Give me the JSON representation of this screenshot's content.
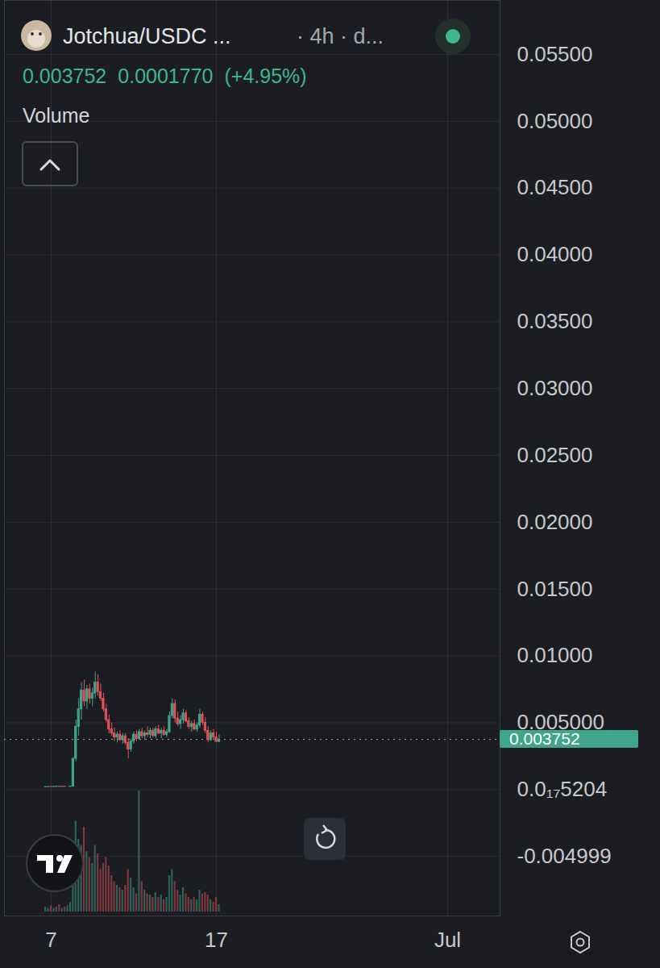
{
  "chart_data": {
    "type": "candlestick",
    "title": "Jotchua/USDC ...",
    "subtitle": "· 4h · d...",
    "last_price": 0.003752,
    "change": {
      "value": 0.000177,
      "label": "0.0001770"
    },
    "change_percent": {
      "value": 4.95,
      "label": "(+4.95%)"
    },
    "volume_title": "Volume",
    "x": [
      6.667,
      6.833,
      7,
      7.167,
      7.333,
      7.5,
      7.667,
      7.833,
      8,
      8.167,
      8.333,
      8.5,
      8.667,
      8.833,
      9,
      9.167,
      9.333,
      9.5,
      9.667,
      9.833,
      10,
      10.167,
      10.333,
      10.5,
      10.667,
      10.833,
      11,
      11.167,
      11.333,
      11.5,
      11.667,
      11.833,
      12,
      12.167,
      12.333,
      12.5,
      12.667,
      12.833,
      13,
      13.167,
      13.333,
      13.5,
      13.667,
      13.833,
      14,
      14.167,
      14.333,
      14.5,
      14.667,
      14.833,
      15,
      15.167,
      15.333,
      15.5,
      15.667,
      15.833,
      16,
      16.167,
      16.333,
      16.5,
      16.667,
      16.833,
      17,
      17.167
    ],
    "open": [
      0.00018,
      0.00019,
      0.0002,
      0.00019,
      0.0002,
      0.00021,
      0.0002,
      0.00021,
      0.0002,
      0.0002,
      0.00022,
      0.0023,
      0.0047,
      0.006,
      0.0074,
      0.0066,
      0.0075,
      0.0068,
      0.0072,
      0.008,
      0.0073,
      0.0068,
      0.006,
      0.0052,
      0.0045,
      0.0042,
      0.0039,
      0.0041,
      0.0037,
      0.004,
      0.0035,
      0.003,
      0.0036,
      0.0041,
      0.0038,
      0.0043,
      0.004,
      0.0042,
      0.0041,
      0.0044,
      0.004,
      0.0045,
      0.0042,
      0.0044,
      0.0041,
      0.0043,
      0.0055,
      0.0064,
      0.0053,
      0.0049,
      0.0052,
      0.0057,
      0.0051,
      0.0047,
      0.0049,
      0.0045,
      0.0048,
      0.0056,
      0.005,
      0.0044,
      0.0037,
      0.0042,
      0.0039,
      0.003575
    ],
    "high": [
      0.0002,
      0.00021,
      0.00021,
      0.0002,
      0.00022,
      0.00022,
      0.00021,
      0.00022,
      0.00021,
      0.00024,
      0.0024,
      0.0052,
      0.0068,
      0.008,
      0.0082,
      0.0078,
      0.0079,
      0.0076,
      0.0088,
      0.0086,
      0.0079,
      0.0072,
      0.0064,
      0.0056,
      0.005,
      0.0046,
      0.0043,
      0.0044,
      0.0042,
      0.0042,
      0.0038,
      0.0038,
      0.0043,
      0.0044,
      0.0045,
      0.0046,
      0.0044,
      0.0047,
      0.0046,
      0.0046,
      0.0047,
      0.0048,
      0.0046,
      0.0047,
      0.0045,
      0.0058,
      0.0068,
      0.0067,
      0.0058,
      0.0055,
      0.006,
      0.0059,
      0.0054,
      0.0051,
      0.0052,
      0.005,
      0.006,
      0.0058,
      0.0054,
      0.0047,
      0.0044,
      0.0045,
      0.0043,
      0.0041
    ],
    "low": [
      0.00017,
      0.00018,
      0.00019,
      0.00018,
      0.00019,
      0.0002,
      0.00019,
      0.0002,
      0.00019,
      0.00019,
      0.00021,
      0.0021,
      0.004,
      0.0052,
      0.0062,
      0.006,
      0.0064,
      0.0062,
      0.0068,
      0.007,
      0.0066,
      0.0058,
      0.005,
      0.0042,
      0.004,
      0.0036,
      0.0035,
      0.0036,
      0.0034,
      0.0033,
      0.0023,
      0.0028,
      0.0034,
      0.0036,
      0.0037,
      0.0038,
      0.0037,
      0.0039,
      0.0038,
      0.0039,
      0.0038,
      0.0041,
      0.0038,
      0.004,
      0.0039,
      0.0042,
      0.0053,
      0.005,
      0.0047,
      0.0045,
      0.0049,
      0.005,
      0.0045,
      0.0043,
      0.0044,
      0.0043,
      0.0046,
      0.0048,
      0.0042,
      0.0035,
      0.0036,
      0.0037,
      0.0035,
      0.0035
    ],
    "close": [
      0.00019,
      0.0002,
      0.00019,
      0.0002,
      0.00021,
      0.0002,
      0.00021,
      0.0002,
      0.0002,
      0.00022,
      0.0023,
      0.0047,
      0.006,
      0.0074,
      0.0066,
      0.0075,
      0.0068,
      0.0072,
      0.008,
      0.0073,
      0.0068,
      0.006,
      0.0052,
      0.0045,
      0.0042,
      0.0039,
      0.0041,
      0.0037,
      0.004,
      0.0035,
      0.003,
      0.0036,
      0.0041,
      0.0038,
      0.0043,
      0.004,
      0.0042,
      0.0041,
      0.0044,
      0.004,
      0.0045,
      0.0042,
      0.0044,
      0.0041,
      0.0043,
      0.0055,
      0.0064,
      0.0053,
      0.0049,
      0.0052,
      0.0057,
      0.0051,
      0.0047,
      0.0049,
      0.0045,
      0.0048,
      0.0056,
      0.005,
      0.0044,
      0.0037,
      0.0042,
      0.0039,
      0.003575,
      0.003752
    ],
    "volume": [
      4,
      3,
      5,
      3,
      4,
      6,
      3,
      4,
      5,
      8,
      30,
      75,
      60,
      55,
      70,
      50,
      45,
      40,
      55,
      48,
      35,
      40,
      45,
      38,
      30,
      25,
      22,
      20,
      18,
      22,
      35,
      28,
      20,
      15,
      100,
      25,
      18,
      15,
      14,
      12,
      16,
      12,
      14,
      10,
      12,
      30,
      35,
      25,
      18,
      14,
      20,
      15,
      12,
      10,
      12,
      10,
      18,
      15,
      16,
      14,
      10,
      8,
      12,
      6
    ],
    "volume_ylim": [
      0,
      100
    ],
    "xlim": [
      4.17,
      34.17
    ],
    "xticks": [
      7,
      17,
      {
        "value": 31,
        "label": "Jul"
      }
    ],
    "ylim": [
      -0.00946,
      0.05904
    ],
    "yticks": [
      {
        "value": 0.055,
        "label": "0.05500"
      },
      {
        "value": 0.05,
        "label": "0.05000"
      },
      {
        "value": 0.045,
        "label": "0.04500"
      },
      {
        "value": 0.04,
        "label": "0.04000"
      },
      {
        "value": 0.035,
        "label": "0.03500"
      },
      {
        "value": 0.03,
        "label": "0.03000"
      },
      {
        "value": 0.025,
        "label": "0.02500"
      },
      {
        "value": 0.02,
        "label": "0.02000"
      },
      {
        "value": 0.015,
        "label": "0.01500"
      },
      {
        "value": 0.01,
        "label": "0.01000"
      },
      {
        "value": 0.005,
        "label": "0.005000"
      },
      {
        "value": 5.204e-18,
        "label": "0.0₁₇5204"
      },
      {
        "value": -0.004999,
        "label": "-0.004999"
      }
    ],
    "grid": true
  }
}
